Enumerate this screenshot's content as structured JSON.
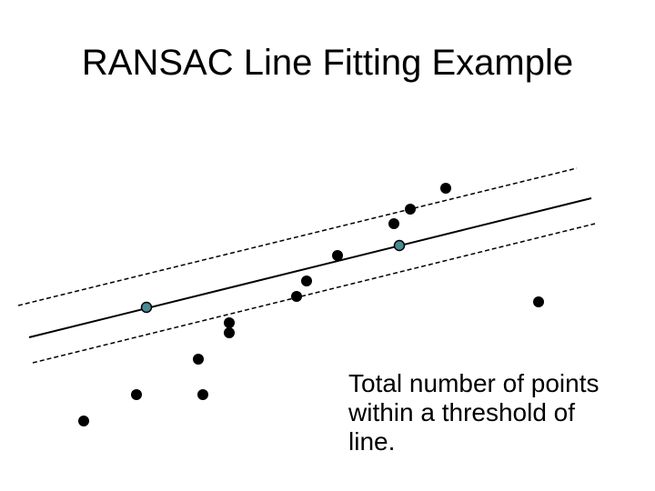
{
  "slide": {
    "title": "RANSAC Line Fitting Example",
    "caption": "Total number of points within a threshold of line."
  },
  "colors": {
    "point": "#000000",
    "sample_point": "#4a8a94",
    "line": "#000000"
  }
}
